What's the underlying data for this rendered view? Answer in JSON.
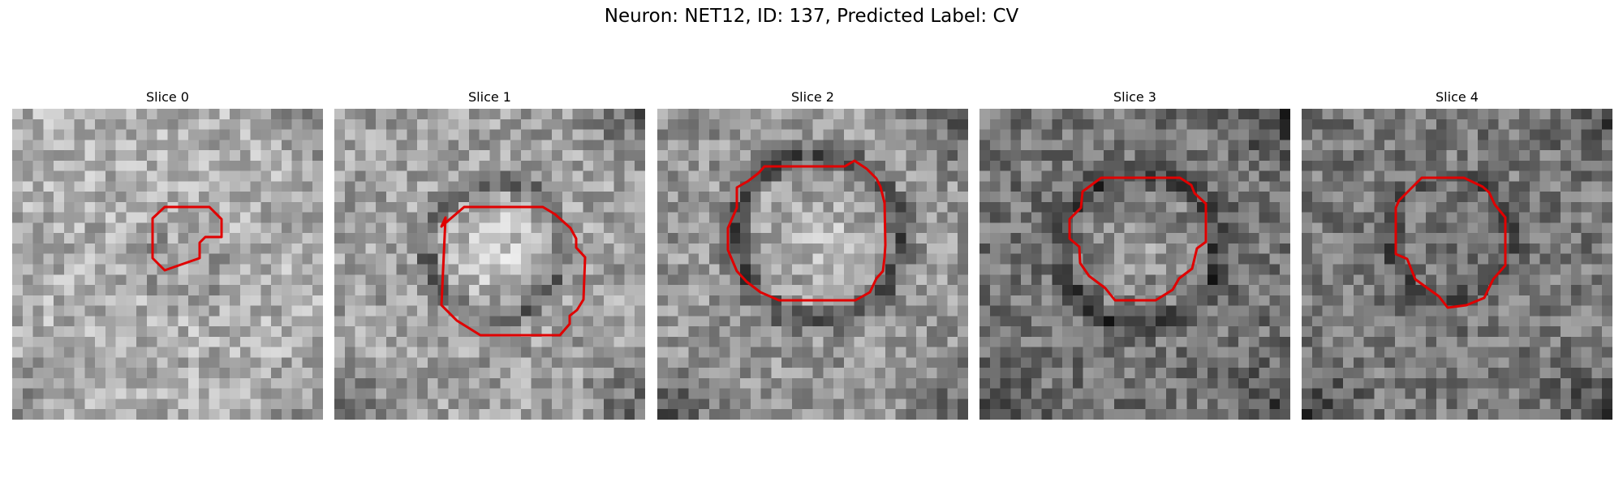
{
  "figure": {
    "title": "Neuron: NET12, ID: 137, Predicted Label: CV"
  },
  "outline_color": "#e00000",
  "panels": [
    {
      "title": "Slice 0"
    },
    {
      "title": "Slice 1"
    },
    {
      "title": "Slice 2"
    },
    {
      "title": "Slice 3"
    },
    {
      "title": "Slice 4"
    }
  ]
}
